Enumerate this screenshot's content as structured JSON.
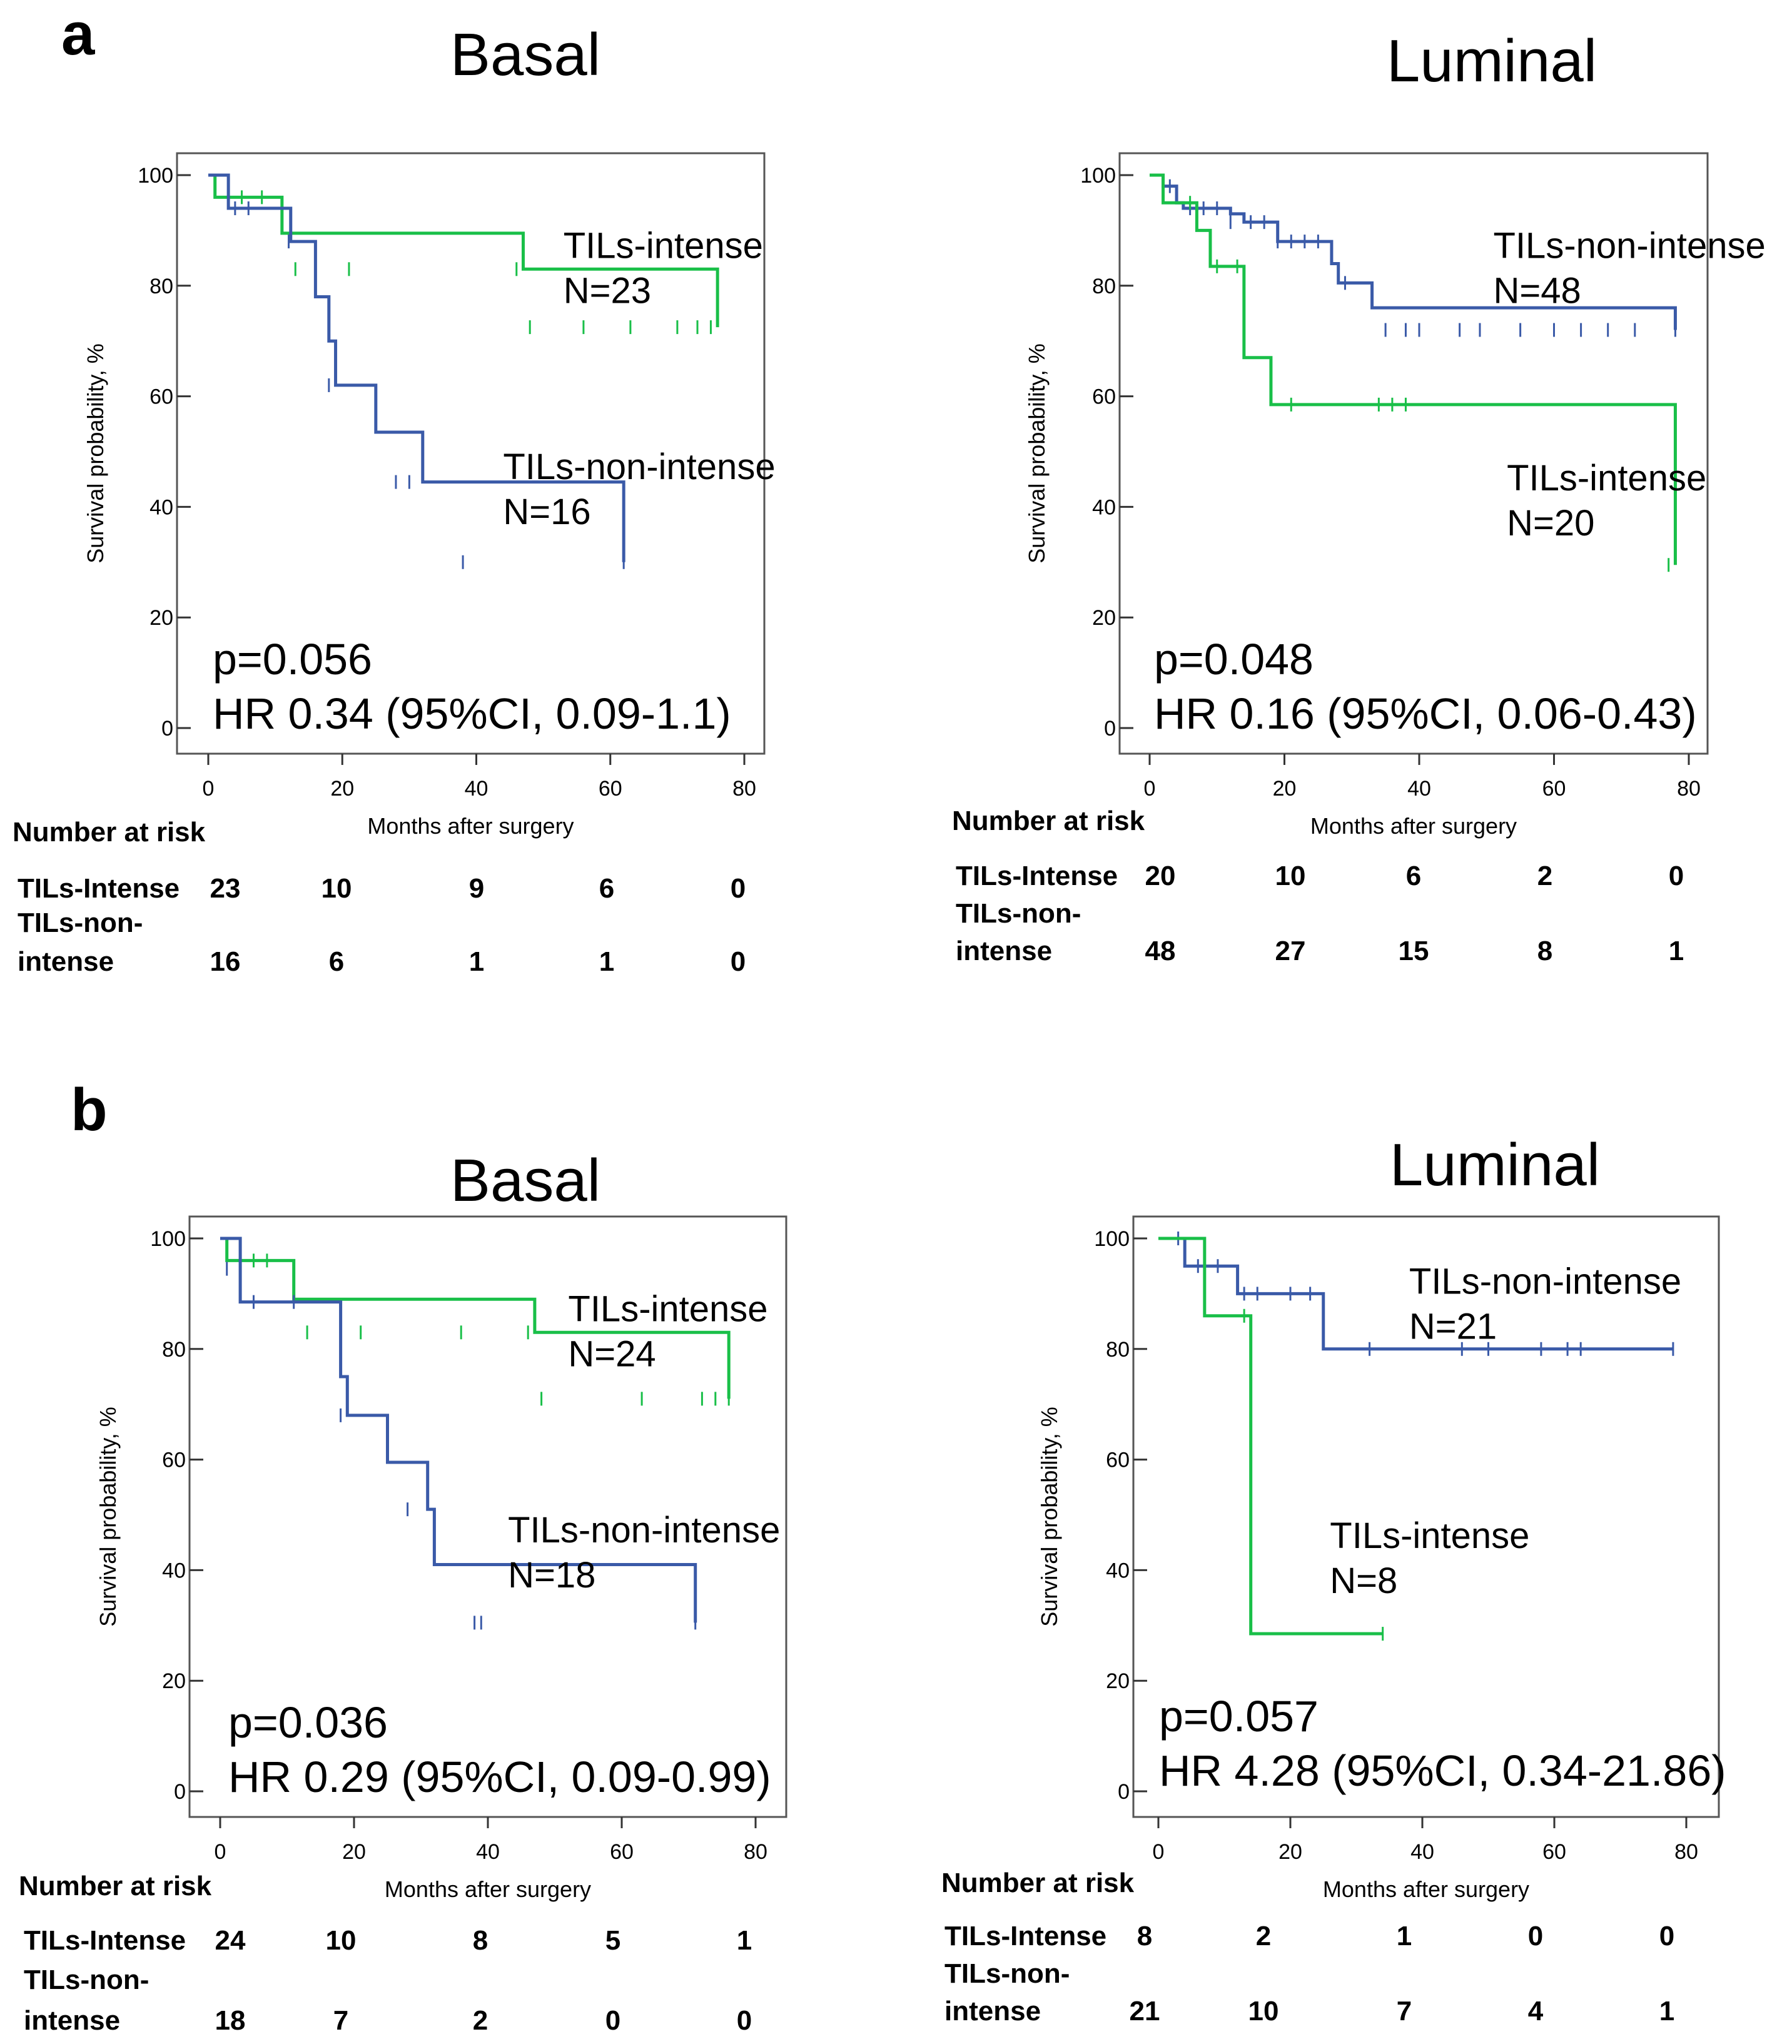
{
  "panel_labels": [
    "a",
    "b"
  ],
  "colors": {
    "intense": "#19bf48",
    "non_intense": "#3a5aa8"
  },
  "chart_data": [
    {
      "type": "line",
      "panel": "a",
      "title": "Basal",
      "xlabel": "Months after surgery",
      "ylabel": "Survival probability, %",
      "xlim": [
        0,
        80
      ],
      "ylim": [
        0,
        100
      ],
      "xticks": [
        0,
        20,
        40,
        60,
        80
      ],
      "yticks": [
        0,
        20,
        40,
        60,
        80,
        100
      ],
      "series": [
        {
          "name": "TILs-intense",
          "n_label": "N=23",
          "color": "#19bf48",
          "x": [
            0,
            1,
            10,
            11,
            47,
            76
          ],
          "y": [
            100,
            96,
            96,
            89.5,
            83,
            72.5
          ],
          "censored": [
            [
              3,
              96
            ],
            [
              5,
              96
            ],
            [
              8,
              96
            ],
            [
              13,
              83
            ],
            [
              21,
              83
            ],
            [
              46,
              83
            ],
            [
              48,
              72.5
            ],
            [
              56,
              72.5
            ],
            [
              63,
              72.5
            ],
            [
              70,
              72.5
            ],
            [
              73,
              72.5
            ],
            [
              75,
              72.5
            ]
          ]
        },
        {
          "name": "TILs-non-intense",
          "n_label": "N=16",
          "color": "#3a5aa8",
          "x": [
            0,
            3,
            12,
            12.3,
            16,
            18,
            19,
            25,
            32,
            62
          ],
          "y": [
            100,
            94,
            94,
            88,
            78,
            70,
            62,
            53.5,
            44.5,
            30
          ],
          "censored": [
            [
              4,
              94
            ],
            [
              6,
              94
            ],
            [
              12,
              88
            ],
            [
              18,
              62
            ],
            [
              28,
              44.5
            ],
            [
              30,
              44.5
            ],
            [
              38,
              30
            ],
            [
              62,
              30
            ]
          ]
        }
      ],
      "labels": [
        {
          "series": "TILs-intense",
          "text": "TILs-intense",
          "n": "N=23",
          "at": [
            53,
            85
          ]
        },
        {
          "series": "TILs-non-intense",
          "text": "TILs-non-intense",
          "n": "N=16",
          "at": [
            44,
            45
          ]
        }
      ],
      "annotations": [
        "p=0.056",
        "HR 0.34 (95%CI, 0.09-1.1)"
      ],
      "risk_table": {
        "heading": "Number at risk",
        "rows": [
          {
            "label": [
              "TILs-Intense"
            ],
            "values": [
              "23",
              "10",
              "9",
              "6",
              "0"
            ]
          },
          {
            "label": [
              "TILs-non-",
              "intense"
            ],
            "values": [
              "16",
              "6",
              "1",
              "1",
              "0"
            ]
          }
        ]
      }
    },
    {
      "type": "line",
      "panel": "a",
      "title": "Luminal",
      "xlabel": "Months after surgery",
      "ylabel": "Survival probability, %",
      "xlim": [
        0,
        80
      ],
      "ylim": [
        0,
        100
      ],
      "xticks": [
        0,
        20,
        40,
        60,
        80
      ],
      "yticks": [
        0,
        20,
        40,
        60,
        80,
        100
      ],
      "series": [
        {
          "name": "TILs-non-intense",
          "n_label": "N=48",
          "color": "#3a5aa8",
          "x": [
            0,
            2,
            4,
            5,
            9,
            12,
            14,
            19,
            25,
            27,
            28,
            32,
            33,
            78
          ],
          "y": [
            100,
            98,
            95,
            94,
            94,
            93,
            91.5,
            88,
            88,
            84,
            80.5,
            80.5,
            76,
            72
          ],
          "censored": [
            [
              3,
              98
            ],
            [
              6,
              94
            ],
            [
              8,
              94
            ],
            [
              10,
              94
            ],
            [
              12,
              91.5
            ],
            [
              15,
              91.5
            ],
            [
              17,
              91.5
            ],
            [
              19,
              88
            ],
            [
              21,
              88
            ],
            [
              23,
              88
            ],
            [
              25,
              88
            ],
            [
              29,
              80.5
            ],
            [
              35,
              72
            ],
            [
              38,
              72
            ],
            [
              40,
              72
            ],
            [
              46,
              72
            ],
            [
              49,
              72
            ],
            [
              55,
              72
            ],
            [
              60,
              72
            ],
            [
              64,
              72
            ],
            [
              68,
              72
            ],
            [
              72,
              72
            ],
            [
              78,
              72
            ]
          ]
        },
        {
          "name": "TILs-intense",
          "n_label": "N=20",
          "color": "#19bf48",
          "x": [
            0,
            2,
            4,
            7,
            9,
            14,
            18,
            42,
            78
          ],
          "y": [
            100,
            95,
            95,
            90,
            83.5,
            67,
            58.5,
            58.5,
            29.5
          ],
          "censored": [
            [
              6,
              95
            ],
            [
              10,
              83.5
            ],
            [
              13,
              83.5
            ],
            [
              21,
              58.5
            ],
            [
              34,
              58.5
            ],
            [
              36,
              58.5
            ],
            [
              38,
              58.5
            ],
            [
              77,
              29.5
            ]
          ]
        }
      ],
      "labels": [
        {
          "series": "TILs-non-intense",
          "text": "TILs-non-intense",
          "n": "N=48",
          "at": [
            51,
            85
          ]
        },
        {
          "series": "TILs-intense",
          "text": "TILs-intense",
          "n": "N=20",
          "at": [
            53,
            43
          ]
        }
      ],
      "annotations": [
        "p=0.048",
        "HR 0.16 (95%CI, 0.06-0.43)"
      ],
      "risk_table": {
        "heading": "Number at risk",
        "rows": [
          {
            "label": [
              "TILs-Intense"
            ],
            "values": [
              "20",
              "10",
              "6",
              "2",
              "0"
            ]
          },
          {
            "label": [
              "TILs-non-",
              "intense"
            ],
            "values": [
              "48",
              "27",
              "15",
              "8",
              "1"
            ]
          }
        ]
      }
    },
    {
      "type": "line",
      "panel": "b",
      "title": "Basal",
      "xlabel": "Months after surgery",
      "ylabel": "Survival probability, %",
      "xlim": [
        0,
        80
      ],
      "ylim": [
        0,
        100
      ],
      "xticks": [
        0,
        20,
        40,
        60,
        80
      ],
      "yticks": [
        0,
        20,
        40,
        60,
        80,
        100
      ],
      "series": [
        {
          "name": "TILs-intense",
          "n_label": "N=24",
          "color": "#19bf48",
          "x": [
            0,
            1,
            9,
            11,
            47,
            76
          ],
          "y": [
            100,
            96,
            96,
            89,
            83,
            71
          ],
          "censored": [
            [
              3,
              96
            ],
            [
              5,
              96
            ],
            [
              7,
              96
            ],
            [
              13,
              83
            ],
            [
              21,
              83
            ],
            [
              36,
              83
            ],
            [
              46,
              83
            ],
            [
              48,
              71
            ],
            [
              63,
              71
            ],
            [
              72,
              71
            ],
            [
              74,
              71
            ],
            [
              76,
              71
            ]
          ]
        },
        {
          "name": "TILs-non-intense",
          "n_label": "N=18",
          "color": "#3a5aa8",
          "x": [
            0,
            3,
            12,
            18,
            19,
            25,
            31,
            32,
            71
          ],
          "y": [
            100,
            88.5,
            88.5,
            75,
            68,
            59.5,
            51,
            41,
            30.5
          ],
          "censored": [
            [
              1,
              94.5
            ],
            [
              5,
              88.5
            ],
            [
              11,
              88.5
            ],
            [
              18,
              68
            ],
            [
              28,
              51
            ],
            [
              38,
              30.5
            ],
            [
              39,
              30.5
            ],
            [
              71,
              30.5
            ]
          ]
        }
      ],
      "labels": [
        {
          "series": "TILs-intense",
          "text": "TILs-intense",
          "n": "N=24",
          "at": [
            52,
            85
          ]
        },
        {
          "series": "TILs-non-intense",
          "text": "TILs-non-intense",
          "n": "N=18",
          "at": [
            43,
            45
          ]
        }
      ],
      "annotations": [
        "p=0.036",
        "HR 0.29 (95%CI, 0.09-0.99)"
      ],
      "risk_table": {
        "heading": "Number at risk",
        "rows": [
          {
            "label": [
              "TILs-Intense"
            ],
            "values": [
              "24",
              "10",
              "8",
              "5",
              "1"
            ]
          },
          {
            "label": [
              "TILs-non-",
              "intense"
            ],
            "values": [
              "18",
              "7",
              "2",
              "0",
              "0"
            ]
          }
        ]
      }
    },
    {
      "type": "line",
      "panel": "b",
      "title": "Luminal",
      "xlabel": "Months after surgery",
      "ylabel": "Survival probability, %",
      "xlim": [
        0,
        80
      ],
      "ylim": [
        0,
        100
      ],
      "xticks": [
        0,
        20,
        40,
        60,
        80
      ],
      "yticks": [
        0,
        20,
        40,
        60,
        80,
        100
      ],
      "series": [
        {
          "name": "TILs-non-intense",
          "n_label": "N=21",
          "color": "#3a5aa8",
          "x": [
            0,
            4,
            12,
            25,
            78
          ],
          "y": [
            100,
            95,
            90,
            80,
            80
          ],
          "censored": [
            [
              3,
              100
            ],
            [
              6,
              95
            ],
            [
              9,
              95
            ],
            [
              13,
              90
            ],
            [
              15,
              90
            ],
            [
              20,
              90
            ],
            [
              23,
              90
            ],
            [
              32,
              80
            ],
            [
              46,
              80
            ],
            [
              50,
              80
            ],
            [
              58,
              80
            ],
            [
              62,
              80
            ],
            [
              64,
              80
            ],
            [
              78,
              80
            ]
          ]
        },
        {
          "name": "TILs-intense",
          "n_label": "N=8",
          "color": "#19bf48",
          "x": [
            0,
            7,
            14,
            34
          ],
          "y": [
            100,
            86,
            28.5,
            28.5
          ],
          "censored": [
            [
              13,
              86
            ],
            [
              34,
              28.5
            ]
          ]
        }
      ],
      "labels": [
        {
          "series": "TILs-non-intense",
          "text": "TILs-non-intense",
          "n": "N=21",
          "at": [
            38,
            90
          ]
        },
        {
          "series": "TILs-intense",
          "text": "TILs-intense",
          "n": "N=8",
          "at": [
            26,
            44
          ]
        }
      ],
      "annotations": [
        "p=0.057",
        "HR 4.28 (95%CI, 0.34-21.86)"
      ],
      "risk_table": {
        "heading": "Number at risk",
        "rows": [
          {
            "label": [
              "TILs-Intense"
            ],
            "values": [
              "8",
              "2",
              "1",
              "0",
              "0"
            ]
          },
          {
            "label": [
              "TILs-non-",
              "intense"
            ],
            "values": [
              "21",
              "10",
              "7",
              "4",
              "1"
            ]
          }
        ]
      }
    }
  ]
}
